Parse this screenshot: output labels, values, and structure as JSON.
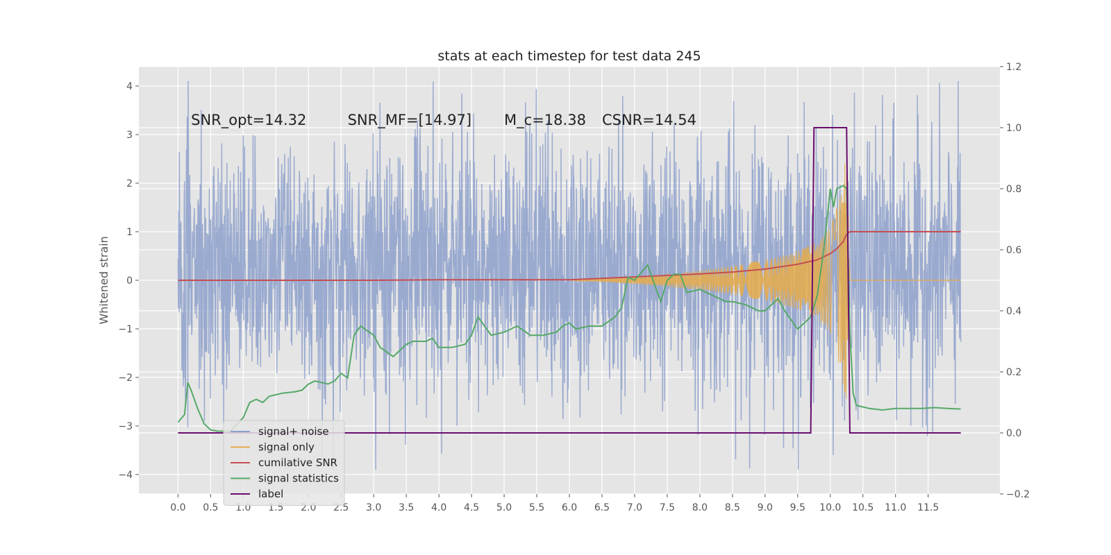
{
  "chart_data": {
    "type": "line",
    "title": "stats at each timestep for test data 245",
    "ylabel": "Whitened strain",
    "xlabel": "",
    "xlim": [
      -0.6,
      12.6
    ],
    "ylim": [
      -4.4,
      4.4
    ],
    "y2lim": [
      -0.2,
      1.2
    ],
    "grid": true,
    "legend_position": "lower-left",
    "x_ticks": [
      0.0,
      0.5,
      1.0,
      1.5,
      2.0,
      2.5,
      3.0,
      3.5,
      4.0,
      4.5,
      5.0,
      5.5,
      6.0,
      6.5,
      7.0,
      7.5,
      8.0,
      8.5,
      9.0,
      9.5,
      10.0,
      10.5,
      11.0,
      11.5
    ],
    "x_tick_labels": [
      "0.0",
      "0.5",
      "1.0",
      "1.5",
      "2.0",
      "2.5",
      "3.0",
      "3.5",
      "4.0",
      "4.5",
      "5.0",
      "5.5",
      "6.0",
      "6.5",
      "7.0",
      "7.5",
      "8.0",
      "8.5",
      "9.0",
      "9.5",
      "10.0",
      "10.5",
      "11.0",
      "11.5"
    ],
    "y_ticks": [
      -4,
      -3,
      -2,
      -1,
      0,
      1,
      2,
      3,
      4
    ],
    "y_tick_labels": [
      "−4",
      "−3",
      "−2",
      "−1",
      "0",
      "1",
      "2",
      "3",
      "4"
    ],
    "y2_ticks": [
      -0.2,
      0.0,
      0.2,
      0.4,
      0.6,
      0.8,
      1.0,
      1.2
    ],
    "y2_tick_labels": [
      "−0.2",
      "0.0",
      "0.2",
      "0.4",
      "0.6",
      "0.8",
      "1.0",
      "1.2"
    ],
    "annotations": [
      {
        "text": "SNR_opt=14.32",
        "x": 0.2,
        "y": 3.3
      },
      {
        "text": "SNR_MF=[14.97]",
        "x": 2.6,
        "y": 3.3
      },
      {
        "text": "M_c=18.38",
        "x": 5.0,
        "y": 3.3
      },
      {
        "text": "CSNR=14.54",
        "x": 6.5,
        "y": 3.3
      }
    ],
    "series": [
      {
        "name": "signal+ noise",
        "axis": "left",
        "color": "#8da0cb",
        "style": "noise",
        "x_range": [
          0.0,
          12.0
        ],
        "envelope": {
          "typical_range": [
            -1.5,
            2.0
          ],
          "max": 4.1,
          "min": -3.9
        }
      },
      {
        "name": "signal only",
        "axis": "left",
        "color": "#e6ab4a",
        "style": "chirp",
        "x": [
          6.0,
          6.5,
          7.0,
          7.5,
          8.0,
          8.5,
          9.0,
          9.5,
          9.8,
          10.0,
          10.1,
          10.2,
          10.25,
          10.3
        ],
        "amplitude": [
          0.0,
          0.03,
          0.08,
          0.13,
          0.2,
          0.3,
          0.42,
          0.6,
          0.8,
          1.1,
          1.5,
          2.2,
          2.9,
          0.0
        ]
      },
      {
        "name": "cumilative SNR",
        "axis": "left",
        "color": "#c44e52",
        "x": [
          0.0,
          1.0,
          2.0,
          3.0,
          4.0,
          5.0,
          6.0,
          6.5,
          7.0,
          7.5,
          8.0,
          8.5,
          9.0,
          9.5,
          9.8,
          10.0,
          10.1,
          10.2,
          10.25,
          10.3,
          11.0,
          12.0
        ],
        "y": [
          0.0,
          0.0,
          0.0,
          0.0,
          0.01,
          0.01,
          0.01,
          0.04,
          0.07,
          0.1,
          0.13,
          0.17,
          0.23,
          0.33,
          0.42,
          0.55,
          0.65,
          0.8,
          0.95,
          1.0,
          1.0,
          1.0
        ]
      },
      {
        "name": "signal statistics",
        "axis": "right",
        "color": "#55a868",
        "x": [
          0.0,
          0.1,
          0.15,
          0.2,
          0.3,
          0.4,
          0.5,
          0.6,
          0.8,
          1.0,
          1.1,
          1.2,
          1.3,
          1.4,
          1.6,
          1.8,
          1.9,
          2.0,
          2.1,
          2.3,
          2.4,
          2.5,
          2.6,
          2.7,
          2.8,
          3.0,
          3.1,
          3.3,
          3.5,
          3.6,
          3.8,
          3.9,
          4.0,
          4.2,
          4.4,
          4.5,
          4.6,
          4.8,
          5.0,
          5.2,
          5.4,
          5.6,
          5.8,
          5.9,
          6.0,
          6.1,
          6.3,
          6.5,
          6.7,
          6.8,
          6.9,
          7.0,
          7.2,
          7.4,
          7.5,
          7.6,
          7.7,
          7.8,
          8.0,
          8.2,
          8.4,
          8.5,
          8.7,
          8.9,
          9.0,
          9.1,
          9.2,
          9.3,
          9.4,
          9.5,
          9.6,
          9.7,
          9.8,
          9.9,
          10.0,
          10.05,
          10.1,
          10.2,
          10.25,
          10.3,
          10.35,
          10.4,
          10.6,
          10.8,
          11.0,
          11.4,
          11.6,
          11.8,
          12.0
        ],
        "y": [
          0.035,
          0.06,
          0.165,
          0.14,
          0.08,
          0.03,
          0.01,
          0.006,
          0.005,
          0.05,
          0.1,
          0.11,
          0.1,
          0.12,
          0.13,
          0.135,
          0.14,
          0.16,
          0.17,
          0.16,
          0.17,
          0.195,
          0.18,
          0.32,
          0.35,
          0.32,
          0.28,
          0.25,
          0.29,
          0.3,
          0.3,
          0.31,
          0.28,
          0.28,
          0.29,
          0.32,
          0.38,
          0.32,
          0.33,
          0.35,
          0.32,
          0.32,
          0.33,
          0.35,
          0.36,
          0.34,
          0.35,
          0.35,
          0.38,
          0.41,
          0.51,
          0.5,
          0.55,
          0.43,
          0.5,
          0.52,
          0.52,
          0.46,
          0.47,
          0.45,
          0.43,
          0.43,
          0.42,
          0.4,
          0.4,
          0.42,
          0.44,
          0.4,
          0.37,
          0.34,
          0.36,
          0.38,
          0.45,
          0.6,
          0.8,
          0.74,
          0.8,
          0.81,
          0.8,
          0.33,
          0.13,
          0.09,
          0.08,
          0.075,
          0.08,
          0.08,
          0.083,
          0.08,
          0.078
        ]
      },
      {
        "name": "label",
        "axis": "right",
        "color": "#6a0d6e",
        "x": [
          0.0,
          9.7,
          9.75,
          10.25,
          10.3,
          12.0
        ],
        "y": [
          0.0,
          0.0,
          1.0,
          1.0,
          0.0,
          0.0
        ]
      }
    ],
    "legend_entries": [
      "signal+ noise",
      "signal only",
      "cumilative SNR",
      "signal statistics",
      "label"
    ]
  }
}
